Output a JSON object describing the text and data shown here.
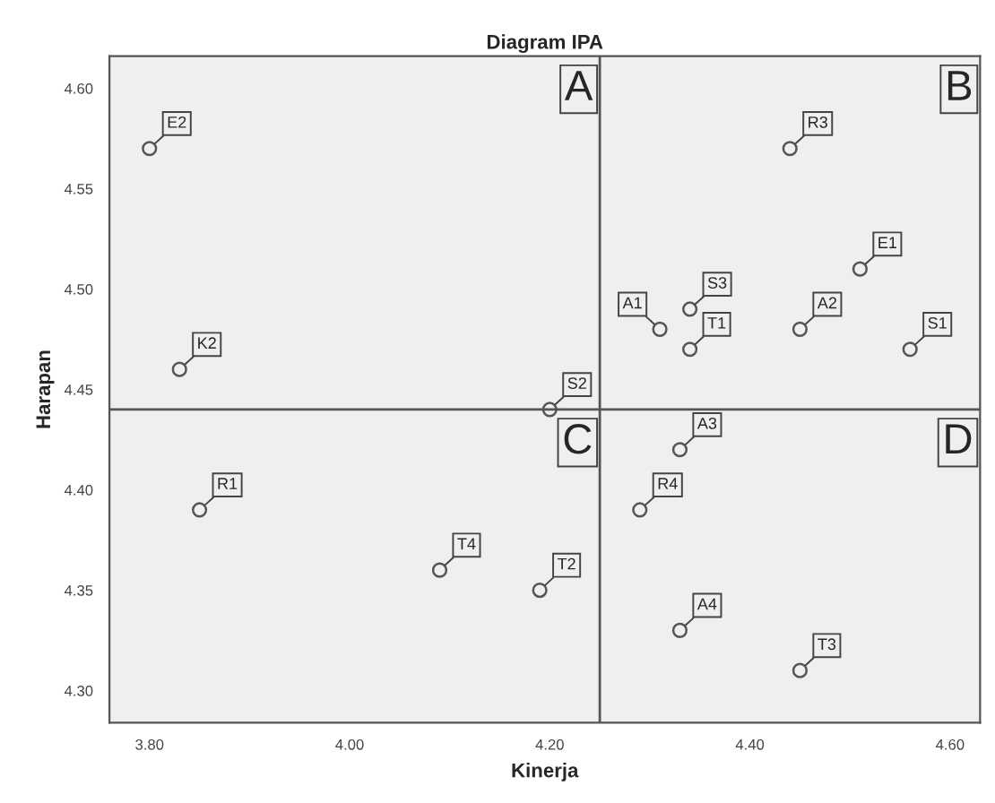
{
  "chart_data": {
    "type": "scatter",
    "title": "Diagram IPA",
    "xlabel": "Kinerja",
    "ylabel": "Harapan",
    "x": [
      3.8,
      3.83,
      4.2,
      4.44,
      4.51,
      4.34,
      4.31,
      4.34,
      4.45,
      4.56,
      4.33,
      4.29,
      4.19,
      4.33,
      4.45,
      3.85,
      4.09
    ],
    "series": [
      {
        "color": "#555555",
        "values": [
          4.57,
          4.46,
          4.44,
          4.57,
          4.51,
          4.49,
          4.48,
          4.47,
          4.48,
          4.47,
          4.42,
          4.39,
          4.35,
          4.33,
          4.31,
          4.39,
          4.36
        ],
        "value_labels": [
          "E2",
          "K2",
          "S2",
          "R3",
          "E1",
          "S3",
          "A1",
          "T1",
          "A2",
          "S1",
          "A3",
          "R4",
          "T2",
          "A4",
          "T3",
          "R1",
          "T4"
        ]
      }
    ],
    "marker": "circle",
    "xlim": [
      3.76,
      4.63
    ],
    "ylim": [
      4.284,
      4.616
    ],
    "xticks": [
      {
        "value": 3.8,
        "label": "3.80"
      },
      {
        "value": 4.0,
        "label": "4.00"
      },
      {
        "value": 4.2,
        "label": "4.20"
      },
      {
        "value": 4.4,
        "label": "4.40"
      },
      {
        "value": 4.6,
        "label": "4.60"
      }
    ],
    "yticks": [
      {
        "value": 4.3,
        "label": "4.30"
      },
      {
        "value": 4.35,
        "label": "4.35"
      },
      {
        "value": 4.4,
        "label": "4.40"
      },
      {
        "value": 4.45,
        "label": "4.45"
      },
      {
        "value": 4.5,
        "label": "4.50"
      },
      {
        "value": 4.55,
        "label": "4.55"
      },
      {
        "value": 4.6,
        "label": "4.60"
      }
    ],
    "ref_lines": [
      {
        "axis": "x",
        "value": 4.25,
        "color": "#555555"
      },
      {
        "axis": "y",
        "value": 4.44,
        "color": "#555555"
      }
    ],
    "annotations": [
      "A",
      "B",
      "C",
      "D"
    ],
    "grid": false,
    "legend": false
  }
}
